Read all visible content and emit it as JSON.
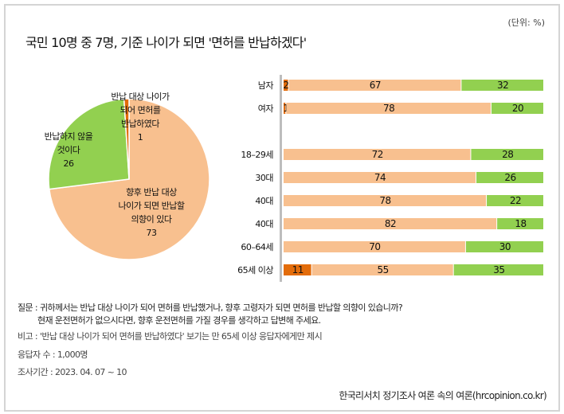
{
  "title": "국민 10명 중 7명, 기준 나이가 되면 '면허를 반납하겠다'",
  "unit": "(단위: %)",
  "colors": {
    "returned": "#e36c0a",
    "will_return": "#f8c08f",
    "wont_return": "#92d050"
  },
  "chart_data": [
    {
      "type": "pie",
      "slices": [
        {
          "label": "향후 반납 대상 나이가 되면 반납할 의향이 있다",
          "label_lines": [
            "향후 반납 대상",
            "나이가 되면 반납할",
            "의향이 있다"
          ],
          "value": 73
        },
        {
          "label": "반납하지 않을 것이다",
          "label_lines": [
            "반납하지 않을",
            "것이다"
          ],
          "value": 26
        },
        {
          "label": "반납 대상 나이가 되어 면허를 반납하였다",
          "label_lines": [
            "반납 대상 나이가",
            "되어 면허를",
            "반납하였다"
          ],
          "value": 1
        }
      ]
    },
    {
      "type": "bar",
      "stacked": true,
      "orientation": "horizontal",
      "categories": [
        "남자",
        "여자",
        "18–29세",
        "30대",
        "40대",
        "40대",
        "60–64세",
        "65세 이상"
      ],
      "series": [
        {
          "name": "반납하였다",
          "values": [
            2,
            1,
            null,
            null,
            null,
            null,
            null,
            11
          ]
        },
        {
          "name": "반납할 의향이 있다",
          "values": [
            67,
            78,
            72,
            74,
            78,
            82,
            70,
            55
          ]
        },
        {
          "name": "반납하지 않을 것이다",
          "values": [
            32,
            20,
            28,
            26,
            22,
            18,
            30,
            35
          ]
        }
      ]
    }
  ],
  "notes": {
    "question_1": "질문 : 귀하께서는 반납 대상 나이가 되어 면허를 반납했거나, 향후 고령자가 되면 면허를 반납할 의향이 있습니까?",
    "question_2": "현재 운전면허가 없으시다면, 향후 운전면허를 가질 경우를 생각하고 답변해 주세요.",
    "remark": "비고 : '반납 대상 나이가 되어 면허를 반납하였다' 보기는 만 65세 이상 응답자에게만 제시",
    "respondents": "응답자 수 : 1,000명",
    "period": "조사기간 : 2023. 04. 07 ~ 10"
  },
  "source": "한국리서치 정기조사 여론 속의 여론(hrcopinion.co.kr)"
}
